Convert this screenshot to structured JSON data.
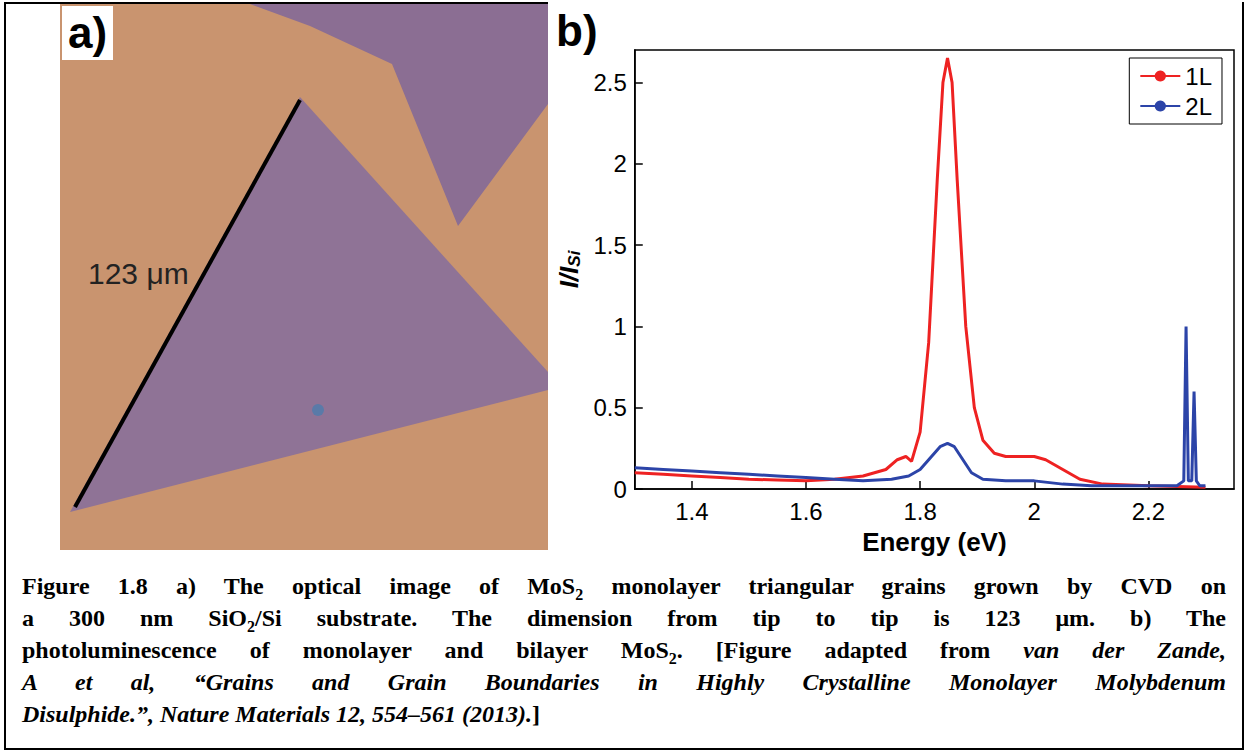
{
  "panel_a": {
    "label": "a)",
    "annotation": "123 μm"
  },
  "chart_data": {
    "panel_label": "b)",
    "type": "line",
    "xlabel": "Energy (eV)",
    "ylabel": [
      {
        "text": "I/I"
      },
      {
        "text": "Si",
        "sub": true
      }
    ],
    "xlim": [
      1.3,
      2.35
    ],
    "xticks": [
      1.4,
      1.6,
      1.8,
      2,
      2.2
    ],
    "ylim": [
      0,
      2.7
    ],
    "yticks": [
      0,
      0.5,
      1,
      1.5,
      2,
      2.5
    ],
    "grid": false,
    "legend": "upper right",
    "series": [
      {
        "name": "1L",
        "color": "#ee2222",
        "x": [
          1.3,
          1.35,
          1.4,
          1.45,
          1.5,
          1.55,
          1.6,
          1.65,
          1.7,
          1.74,
          1.76,
          1.775,
          1.785,
          1.8,
          1.815,
          1.83,
          1.84,
          1.848,
          1.856,
          1.865,
          1.88,
          1.895,
          1.91,
          1.93,
          1.95,
          1.98,
          2.0,
          2.02,
          2.05,
          2.08,
          2.12,
          2.2,
          2.3
        ],
        "values": [
          0.1,
          0.09,
          0.08,
          0.07,
          0.06,
          0.055,
          0.05,
          0.06,
          0.08,
          0.12,
          0.18,
          0.2,
          0.17,
          0.35,
          0.9,
          1.9,
          2.5,
          2.65,
          2.5,
          1.9,
          1.0,
          0.5,
          0.3,
          0.22,
          0.2,
          0.2,
          0.2,
          0.18,
          0.12,
          0.06,
          0.03,
          0.02,
          0.01
        ]
      },
      {
        "name": "2L",
        "color": "#2c44a8",
        "x": [
          1.3,
          1.35,
          1.4,
          1.45,
          1.5,
          1.55,
          1.6,
          1.65,
          1.7,
          1.75,
          1.78,
          1.8,
          1.82,
          1.835,
          1.848,
          1.86,
          1.875,
          1.89,
          1.91,
          1.95,
          2.0,
          2.05,
          2.1,
          2.2,
          2.25,
          2.262,
          2.266,
          2.27,
          2.276,
          2.28,
          2.284,
          2.29,
          2.3
        ],
        "values": [
          0.13,
          0.12,
          0.11,
          0.1,
          0.09,
          0.08,
          0.07,
          0.06,
          0.05,
          0.06,
          0.08,
          0.12,
          0.2,
          0.26,
          0.28,
          0.26,
          0.18,
          0.1,
          0.06,
          0.05,
          0.05,
          0.03,
          0.02,
          0.02,
          0.02,
          0.05,
          1.0,
          0.05,
          0.05,
          0.6,
          0.05,
          0.02,
          0.02
        ]
      }
    ]
  },
  "caption": {
    "lines": [
      [
        {
          "text": "Figure 1.8 a) The optical image of MoS"
        },
        {
          "text": "2",
          "sub": true
        },
        {
          "text": " monolayer triangular grains grown by CVD on"
        }
      ],
      [
        {
          "text": "a 300 nm SiO"
        },
        {
          "text": "2",
          "sub": true
        },
        {
          "text": "/Si substrate. The dimension from tip to tip is 123 μm. b) The"
        }
      ],
      [
        {
          "text": "photoluminescence of monolayer and bilayer MoS"
        },
        {
          "text": "2",
          "sub": true
        },
        {
          "text": ". [Figure adapted from "
        },
        {
          "text": "van der Zande,",
          "italic": true
        }
      ],
      [
        {
          "text": "A et al, “Grains and Grain Boundaries in Highly Crystalline Monolayer Molybdenum",
          "italic": true
        }
      ],
      [
        {
          "text": "Disulphide.”, Nature Materials 12, 554–561 (2013).",
          "italic": true
        },
        {
          "text": "]"
        }
      ]
    ]
  }
}
